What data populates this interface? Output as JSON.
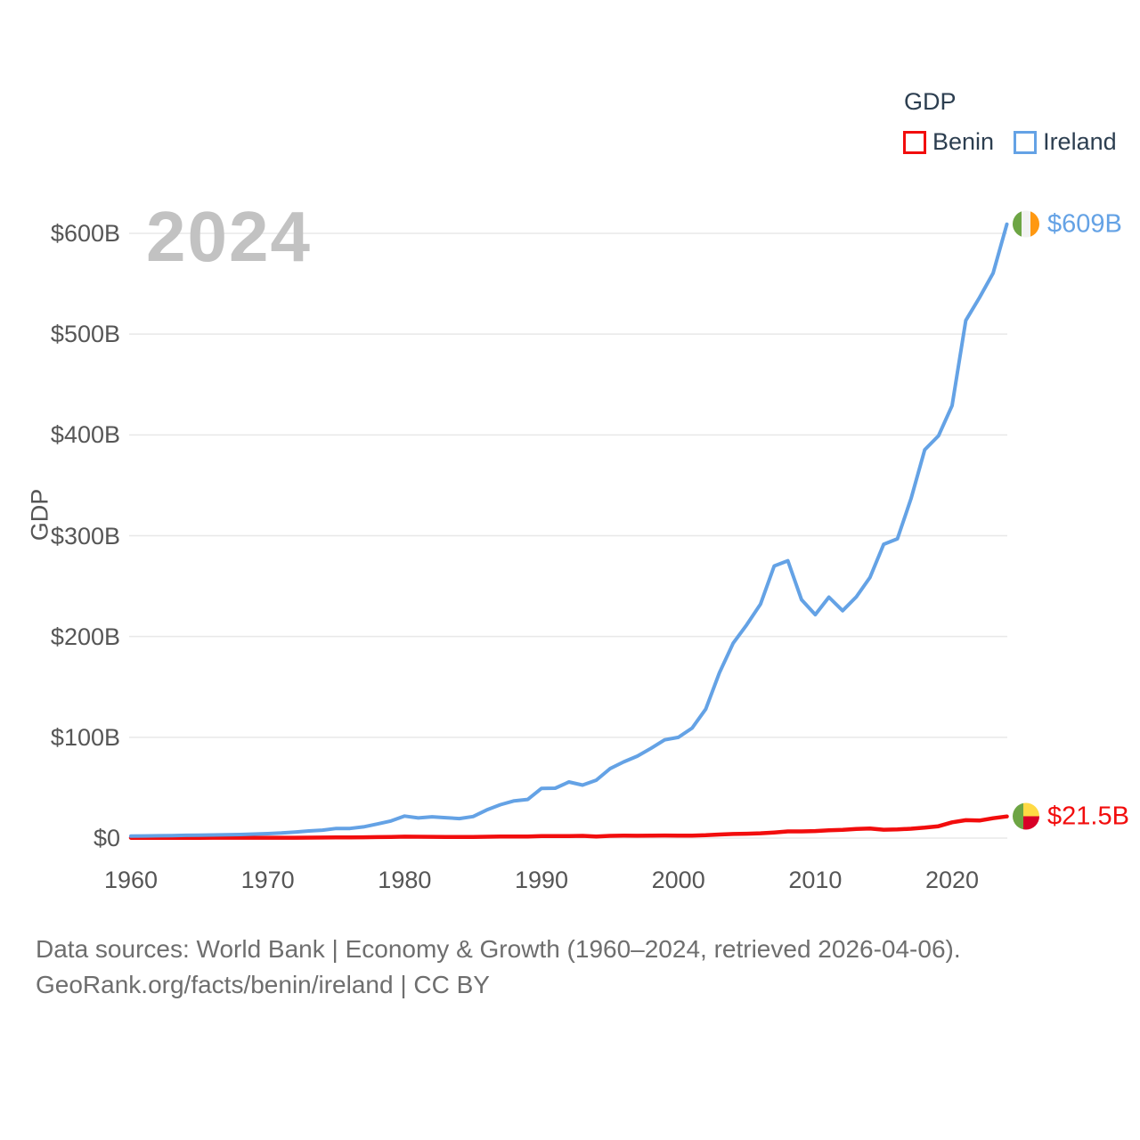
{
  "watermark": "2024",
  "legend": {
    "title": "GDP",
    "items": [
      {
        "label": "Benin",
        "color": "#f20d0d"
      },
      {
        "label": "Ireland",
        "color": "#64a2e5"
      }
    ]
  },
  "y_axis": {
    "title": "GDP"
  },
  "end_labels": {
    "ireland": {
      "text": "$609B",
      "flag": "ireland-flag-icon"
    },
    "benin": {
      "text": "$21.5B",
      "flag": "benin-flag-icon"
    }
  },
  "flags": {
    "ireland": {
      "colors": [
        "#6da544",
        "#f2f2f2",
        "#ff9811"
      ]
    },
    "benin": {
      "colors": [
        "#6da544",
        "#ffda44",
        "#d80027"
      ]
    }
  },
  "footer": {
    "line1": "Data sources: World Bank | Economy & Growth (1960–2024, retrieved 2026-04-06).",
    "line2": "GeoRank.org/facts/benin/ireland | CC BY"
  },
  "chart_data": {
    "type": "line",
    "title": "GDP",
    "ylabel": "GDP",
    "xlim": [
      1960,
      2024
    ],
    "ylim": [
      0,
      600
    ],
    "grid": "horizontal",
    "legend_position": "top-right",
    "y_tick_values": [
      0,
      100,
      200,
      300,
      400,
      500,
      600
    ],
    "y_tick_labels": [
      "$0",
      "$100B",
      "$200B",
      "$300B",
      "$400B",
      "$500B",
      "$600B"
    ],
    "x_tick_values": [
      1960,
      1970,
      1980,
      1990,
      2000,
      2010,
      2020
    ],
    "x": [
      1960,
      1961,
      1962,
      1963,
      1964,
      1965,
      1966,
      1967,
      1968,
      1969,
      1970,
      1971,
      1972,
      1973,
      1974,
      1975,
      1976,
      1977,
      1978,
      1979,
      1980,
      1981,
      1982,
      1983,
      1984,
      1985,
      1986,
      1987,
      1988,
      1989,
      1990,
      1991,
      1992,
      1993,
      1994,
      1995,
      1996,
      1997,
      1998,
      1999,
      2000,
      2001,
      2002,
      2003,
      2004,
      2005,
      2006,
      2007,
      2008,
      2009,
      2010,
      2011,
      2012,
      2013,
      2014,
      2015,
      2016,
      2017,
      2018,
      2019,
      2020,
      2021,
      2022,
      2023,
      2024
    ],
    "unit": "billions of current US$",
    "series": [
      {
        "name": "Benin",
        "color": "#f20d0d",
        "end_value_label": "$21.5B",
        "values": [
          0.23,
          0.24,
          0.24,
          0.25,
          0.27,
          0.29,
          0.31,
          0.32,
          0.34,
          0.35,
          0.33,
          0.35,
          0.38,
          0.46,
          0.52,
          0.68,
          0.72,
          0.78,
          0.96,
          1.18,
          1.41,
          1.29,
          1.25,
          1.09,
          1.05,
          1.05,
          1.33,
          1.57,
          1.63,
          1.51,
          1.96,
          1.99,
          2.06,
          2.2,
          1.61,
          2.17,
          2.36,
          2.27,
          2.45,
          2.58,
          2.36,
          2.5,
          2.81,
          3.56,
          4.08,
          4.36,
          4.74,
          5.55,
          6.64,
          6.59,
          6.97,
          7.81,
          8.12,
          9.11,
          9.58,
          8.29,
          8.58,
          9.25,
          10.35,
          11.79,
          15.65,
          17.79,
          17.4,
          19.67,
          21.5
        ]
      },
      {
        "name": "Ireland",
        "color": "#64a2e5",
        "end_value_label": "$609B",
        "values": [
          1.94,
          2.09,
          2.26,
          2.43,
          2.74,
          2.95,
          3.12,
          3.33,
          3.53,
          4.02,
          4.45,
          5.0,
          6.0,
          7.04,
          7.84,
          9.51,
          9.54,
          11.09,
          13.94,
          16.98,
          21.81,
          19.99,
          21.1,
          20.22,
          19.37,
          21.42,
          27.96,
          33.14,
          36.9,
          38.31,
          49.34,
          49.51,
          55.69,
          52.57,
          57.44,
          68.81,
          75.51,
          81.28,
          89.11,
          97.47,
          99.94,
          109.12,
          127.94,
          164.12,
          193.38,
          211.69,
          232.11,
          269.92,
          275.15,
          236.44,
          221.68,
          239.03,
          225.58,
          239.39,
          258.58,
          291.5,
          296.92,
          336.77,
          385.29,
          399.06,
          429.07,
          513.62,
          536.31,
          560.57,
          609.0
        ]
      }
    ]
  }
}
